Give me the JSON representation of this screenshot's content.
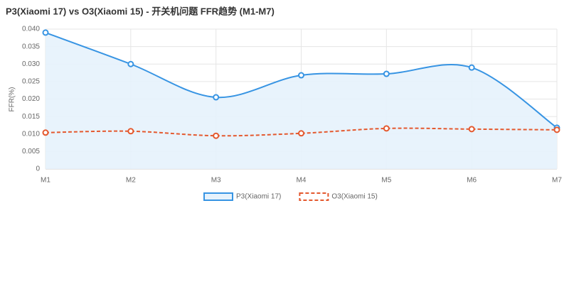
{
  "chart_data": {
    "type": "line",
    "title": "P3(Xiaomi 17) vs O3(Xiaomi 15) - 开关机问题 FFR趋势 (M1-M7)",
    "y_label": "FFR(%)",
    "categories": [
      "M1",
      "M2",
      "M3",
      "M4",
      "M5",
      "M6",
      "M7"
    ],
    "series": [
      {
        "name": "P3(Xiaomi 17)",
        "color": "#3794e3",
        "fill": "#e6f2fc",
        "dashed": false,
        "values": [
          0.039,
          0.03,
          0.0205,
          0.0268,
          0.0272,
          0.029,
          0.0118
        ]
      },
      {
        "name": "O3(Xiaomi 15)",
        "color": "#e4592f",
        "dashed": true,
        "values": [
          0.0104,
          0.0108,
          0.0095,
          0.0102,
          0.0116,
          0.0114,
          0.0112
        ]
      }
    ],
    "ylim": [
      0,
      0.04
    ],
    "yticks": [
      0,
      0.005,
      {
        "value": 0.01,
        "label": "0.010"
      },
      0.015,
      {
        "value": 0.02,
        "label": "0.020"
      },
      0.025,
      {
        "value": 0.03,
        "label": "0.030"
      },
      0.035,
      {
        "value": 0.04,
        "label": "0.040"
      }
    ],
    "grid": true,
    "legend": "bottom"
  }
}
